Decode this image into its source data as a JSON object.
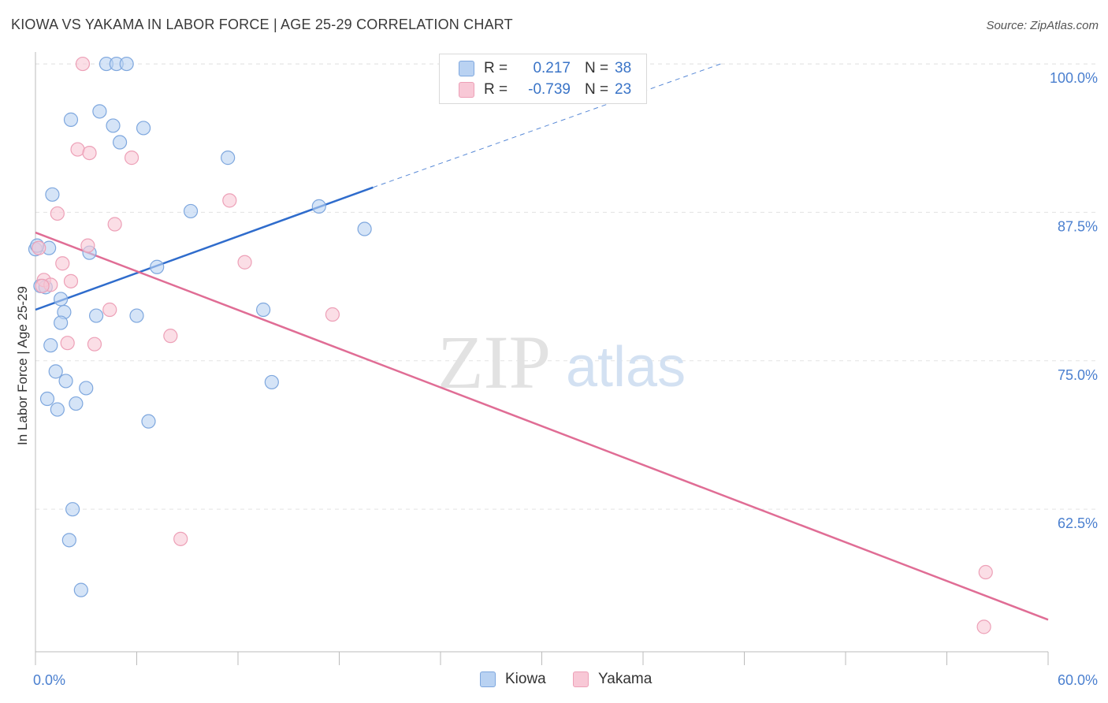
{
  "title": "KIOWA VS YAKAMA IN LABOR FORCE | AGE 25-29 CORRELATION CHART",
  "source": "Source: ZipAtlas.com",
  "watermark": {
    "zip": "ZIP",
    "atlas": "atlas"
  },
  "legend": {
    "kiowa": {
      "r_label": "R =",
      "r_value": "0.217",
      "n_label": "N =",
      "n_value": "38"
    },
    "yakama": {
      "r_label": "R =",
      "r_value": "-0.739",
      "n_label": "N =",
      "n_value": "23"
    }
  },
  "colors": {
    "kiowa_fill": "#b9d2f2",
    "kiowa_stroke": "#7ea7de",
    "kiowa_line": "#2f6ccc",
    "yakama_fill": "#f8c8d6",
    "yakama_stroke": "#eda0b7",
    "yakama_line": "#e06d95",
    "axis_label": "#4a7fcf",
    "grid": "#e3e3e3"
  },
  "chart_data": {
    "type": "scatter",
    "title": "KIOWA VS YAKAMA IN LABOR FORCE | AGE 25-29 CORRELATION CHART",
    "xlabel": "",
    "ylabel": "In Labor Force | Age 25-29",
    "xlim": [
      0,
      60
    ],
    "ylim": [
      50.5,
      101
    ],
    "x_tick_labels": [
      "0.0%",
      "60.0%"
    ],
    "y_ticks": [
      62.5,
      75.0,
      87.5,
      100.0
    ],
    "y_tick_labels": [
      "62.5%",
      "75.0%",
      "87.5%",
      "100.0%"
    ],
    "series": [
      {
        "name": "Kiowa",
        "points": [
          [
            4.2,
            100.0
          ],
          [
            4.8,
            100.0
          ],
          [
            5.4,
            100.0
          ],
          [
            3.8,
            96.0
          ],
          [
            2.1,
            95.3
          ],
          [
            4.6,
            94.8
          ],
          [
            6.4,
            94.6
          ],
          [
            5.0,
            93.4
          ],
          [
            11.4,
            92.1
          ],
          [
            1.0,
            89.0
          ],
          [
            9.2,
            87.6
          ],
          [
            16.8,
            88.0
          ],
          [
            19.5,
            86.1
          ],
          [
            0.8,
            84.5
          ],
          [
            3.2,
            84.1
          ],
          [
            0.0,
            84.4
          ],
          [
            7.2,
            82.9
          ],
          [
            0.3,
            81.3
          ],
          [
            0.6,
            81.2
          ],
          [
            1.5,
            80.2
          ],
          [
            13.5,
            79.3
          ],
          [
            1.7,
            79.1
          ],
          [
            3.6,
            78.8
          ],
          [
            6.0,
            78.8
          ],
          [
            1.5,
            78.2
          ],
          [
            0.9,
            76.3
          ],
          [
            1.2,
            74.1
          ],
          [
            1.8,
            73.3
          ],
          [
            14.0,
            73.2
          ],
          [
            3.0,
            72.7
          ],
          [
            0.7,
            71.8
          ],
          [
            2.4,
            71.4
          ],
          [
            1.3,
            70.9
          ],
          [
            6.7,
            69.9
          ],
          [
            2.2,
            62.5
          ],
          [
            2.0,
            59.9
          ],
          [
            2.7,
            55.7
          ],
          [
            0.1,
            84.7
          ]
        ]
      },
      {
        "name": "Yakama",
        "points": [
          [
            2.8,
            100.0
          ],
          [
            2.5,
            92.8
          ],
          [
            3.2,
            92.5
          ],
          [
            5.7,
            92.1
          ],
          [
            11.5,
            88.5
          ],
          [
            1.3,
            87.4
          ],
          [
            4.7,
            86.5
          ],
          [
            3.1,
            84.7
          ],
          [
            12.4,
            83.3
          ],
          [
            1.6,
            83.2
          ],
          [
            0.5,
            81.8
          ],
          [
            2.1,
            81.7
          ],
          [
            0.9,
            81.4
          ],
          [
            0.4,
            81.3
          ],
          [
            4.4,
            79.3
          ],
          [
            17.6,
            78.9
          ],
          [
            8.0,
            77.1
          ],
          [
            1.9,
            76.5
          ],
          [
            3.5,
            76.4
          ],
          [
            8.6,
            60.0
          ],
          [
            56.3,
            57.2
          ],
          [
            56.2,
            52.6
          ],
          [
            0.2,
            84.5
          ]
        ]
      }
    ],
    "trend_lines": [
      {
        "series": "Kiowa",
        "x": [
          0,
          20
        ],
        "y": [
          79.3,
          89.6
        ],
        "dashed_extension": {
          "x": [
            20,
            40.6
          ],
          "y": [
            89.6,
            100.0
          ]
        }
      },
      {
        "series": "Yakama",
        "x": [
          0,
          60
        ],
        "y": [
          85.8,
          53.2
        ]
      }
    ]
  }
}
